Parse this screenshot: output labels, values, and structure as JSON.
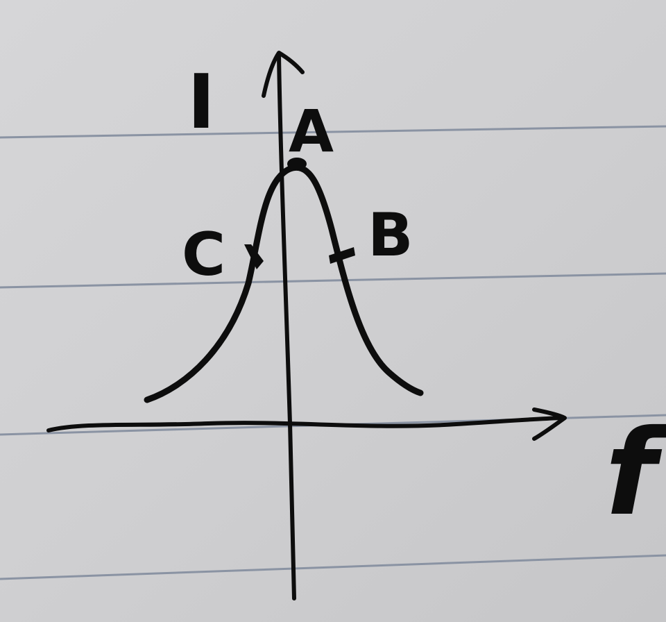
{
  "diagram": {
    "y_axis_label": "I",
    "x_axis_label": "f",
    "points": [
      {
        "name": "A",
        "label": "A"
      },
      {
        "name": "B",
        "label": "B"
      },
      {
        "name": "C",
        "label": "C"
      }
    ]
  }
}
